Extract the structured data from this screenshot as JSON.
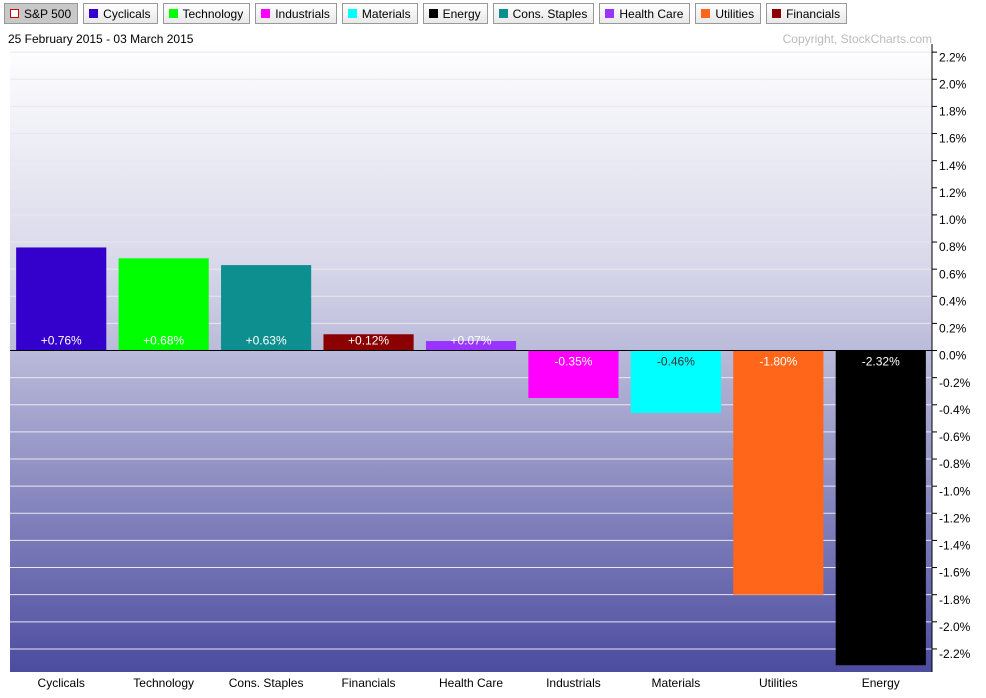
{
  "chart_data": {
    "type": "bar",
    "subtitle": "25 February 2015 - 03 March 2015",
    "copyright": "Copyright, StockCharts.com",
    "legend": [
      {
        "name": "S&P 500",
        "color": "#cc0000",
        "hollow": true
      },
      {
        "name": "Cyclicals",
        "color": "#3300cc"
      },
      {
        "name": "Technology",
        "color": "#00ff00"
      },
      {
        "name": "Industrials",
        "color": "#ff00ff"
      },
      {
        "name": "Materials",
        "color": "#00ffff"
      },
      {
        "name": "Energy",
        "color": "#000000"
      },
      {
        "name": "Cons. Staples",
        "color": "#0e8f8f"
      },
      {
        "name": "Health Care",
        "color": "#9933ff"
      },
      {
        "name": "Utilities",
        "color": "#ff6619"
      },
      {
        "name": "Financials",
        "color": "#8b0000"
      }
    ],
    "categories": [
      "Cyclicals",
      "Technology",
      "Cons. Staples",
      "Financials",
      "Health Care",
      "Industrials",
      "Materials",
      "Utilities",
      "Energy"
    ],
    "values": [
      0.76,
      0.68,
      0.63,
      0.12,
      0.07,
      -0.35,
      -0.46,
      -1.8,
      -2.32
    ],
    "value_labels": [
      "+0.76%",
      "+0.68%",
      "+0.63%",
      "+0.12%",
      "+0.07%",
      "-0.35%",
      "-0.46%",
      "-1.80%",
      "-2.32%"
    ],
    "colors": [
      "#3300cc",
      "#00ff00",
      "#0e8f8f",
      "#8b0000",
      "#9933ff",
      "#ff00ff",
      "#00ffff",
      "#ff6619",
      "#000000"
    ],
    "ylim": [
      -2.37,
      2.26
    ],
    "yticks": [
      {
        "value": 2.2,
        "label": "2.2%"
      },
      {
        "value": 2.0,
        "label": "2.0%"
      },
      {
        "value": 1.8,
        "label": "1.8%"
      },
      {
        "value": 1.6,
        "label": "1.6%"
      },
      {
        "value": 1.4,
        "label": "1.4%"
      },
      {
        "value": 1.2,
        "label": "1.2%"
      },
      {
        "value": 1.0,
        "label": "1.0%"
      },
      {
        "value": 0.8,
        "label": "0.8%"
      },
      {
        "value": 0.6,
        "label": "0.6%"
      },
      {
        "value": 0.4,
        "label": "0.4%"
      },
      {
        "value": 0.2,
        "label": "0.2%"
      },
      {
        "value": 0.0,
        "label": "0.0%"
      },
      {
        "value": -0.2,
        "label": "-0.2%"
      },
      {
        "value": -0.4,
        "label": "-0.4%"
      },
      {
        "value": -0.6,
        "label": "-0.6%"
      },
      {
        "value": -0.8,
        "label": "-0.8%"
      },
      {
        "value": -1.0,
        "label": "-1.0%"
      },
      {
        "value": -1.2,
        "label": "-1.2%"
      },
      {
        "value": -1.4,
        "label": "-1.4%"
      },
      {
        "value": -1.6,
        "label": "-1.6%"
      },
      {
        "value": -1.8,
        "label": "-1.8%"
      },
      {
        "value": -2.0,
        "label": "-2.0%"
      },
      {
        "value": -2.2,
        "label": "-2.2%"
      }
    ],
    "grid": true
  }
}
